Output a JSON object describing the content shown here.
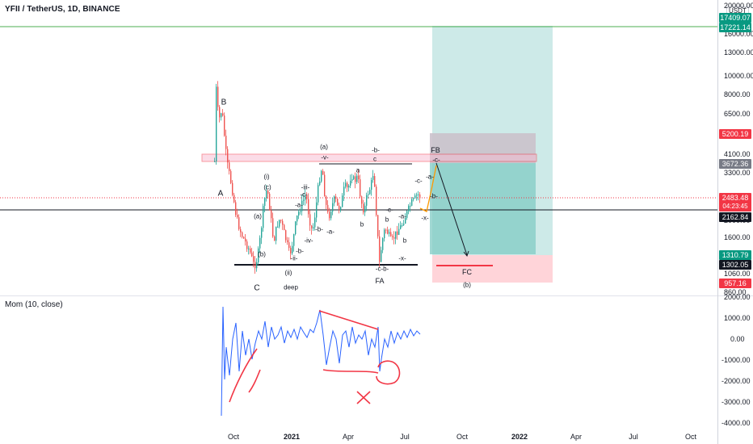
{
  "header": {
    "symbol": "YFII / TetherUS, 1D, BINANCE",
    "currency_badge": "USDT"
  },
  "indicator": {
    "title": "Mom (10, close)"
  },
  "price_axis": {
    "ticks": [
      "20000.00",
      "16000.00",
      "13000.00",
      "10000.00",
      "8000.00",
      "6500.00",
      "4100.00",
      "3300.00",
      "2000.00",
      "1600.00",
      "1060.00",
      "860.00"
    ],
    "badges": {
      "target_top": "17409.07",
      "target": "17221.14",
      "fib_upper": "5200.19",
      "current_box": "3672.36",
      "last_price": "2483.48",
      "countdown": "04:23:45",
      "horizontal": "2162.84",
      "stop_level": "1310.79",
      "support": "1302.05",
      "lower_box": "957.16"
    },
    "colors": {
      "green": "#089981",
      "red": "#f23645",
      "dark": "#131722",
      "grey": "#787b86"
    }
  },
  "mom_axis": {
    "ticks": [
      "2000.00",
      "1000.00",
      "0.00",
      "-1000.00",
      "-2000.00",
      "-3000.00",
      "-4000.00"
    ]
  },
  "time_axis": {
    "labels": [
      "Oct",
      "2021",
      "Apr",
      "Jul",
      "Oct",
      "2022",
      "Apr",
      "Jul",
      "Oct"
    ]
  },
  "annotations": {
    "A": "A",
    "B": "B",
    "C": "C",
    "FA": "FA",
    "FB": "FB",
    "FC": "FC",
    "a_paren": "(a)",
    "b_paren": "(b)",
    "b_paren2": "(b)",
    "c_paren": "(c)",
    "i_paren": "(i)",
    "ii_paren": "(ii)",
    "deep": "deep",
    "v": "-v-",
    "b_mark": "-b-",
    "c_low": "c",
    "a_low": "a",
    "b_low": "b",
    "b_low2": "b",
    "iii": "-iii-",
    "c_mark": "-c-",
    "iv": "-iv-",
    "ii": "-ii-",
    "a_mark": "-a-",
    "a_mark2": "-a-",
    "b_mark2": "-b-",
    "a_mark3": "-a-",
    "c_mark2": "-c-",
    "c_mark3": "-c-",
    "x_mark": "-x-",
    "x_mark2": "-x-",
    "b_mark3": "-b-",
    "a_mark4": "-a-",
    "c_mark4": "-c-",
    "cb_mark": "-c-b-",
    "a_small": "a",
    "b_small": "-b-",
    "c_small": "c",
    "a_small2": "-a-"
  }
}
